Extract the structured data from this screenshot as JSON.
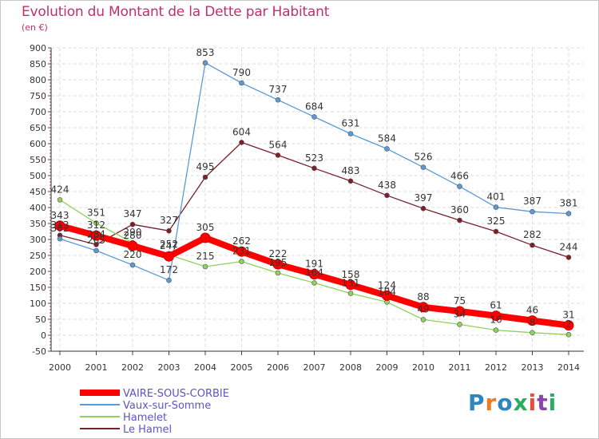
{
  "title": "Evolution du Montant de la Dette par Habitant",
  "unit_label": "(en €)",
  "logo_text": "Proxiti",
  "logo_colors": [
    "#2e86c1",
    "#e67e22",
    "#2e86c1",
    "#27ae60",
    "#e74c3c",
    "#8e44ad",
    "#27ae60"
  ],
  "chart_data": {
    "type": "line",
    "title": "Evolution du Montant de la Dette par Habitant",
    "ylabel": "(en €)",
    "x": [
      "2000",
      "2001",
      "2002",
      "2003",
      "2004",
      "2005",
      "2006",
      "2007",
      "2008",
      "2009",
      "2010",
      "2011",
      "2012",
      "2013",
      "2014"
    ],
    "yticks": [
      900,
      850,
      800,
      750,
      700,
      650,
      600,
      550,
      500,
      450,
      400,
      350,
      300,
      250,
      200,
      150,
      100,
      50,
      0,
      -50
    ],
    "ylim": [
      -50,
      900
    ],
    "grid": true,
    "legend_position": "bottom-left",
    "series": [
      {
        "name": "Le Hamel",
        "color": "#7a1f2b",
        "values": [
          313,
          284,
          347,
          327,
          495,
          604,
          564,
          523,
          483,
          438,
          397,
          360,
          325,
          282,
          244
        ],
        "labels": [
          "313",
          "284",
          "347",
          "327",
          "495",
          "604",
          "564",
          "523",
          "483",
          "438",
          "397",
          "360",
          "325",
          "282",
          "244"
        ]
      },
      {
        "name": "Hamelet",
        "color": "#8ed25c",
        "values": [
          424,
          351,
          290,
          252,
          215,
          231,
          195,
          164,
          131,
          104,
          49,
          34,
          16,
          8,
          2
        ],
        "labels": [
          "424",
          "351",
          "290",
          "252",
          "215",
          "231",
          "195",
          "164",
          "131",
          "104",
          "49",
          "34",
          "16",
          "8",
          "2"
        ]
      },
      {
        "name": "Vaux-sur-Somme",
        "color": "#5b9bd5",
        "values": [
          302,
          265,
          220,
          172,
          853,
          790,
          737,
          684,
          631,
          584,
          526,
          466,
          401,
          387,
          381
        ],
        "labels": [
          "302",
          "265",
          "220",
          "172",
          "853",
          "790",
          "737",
          "684",
          "631",
          "584",
          "526",
          "466",
          "401",
          "387",
          "381"
        ]
      },
      {
        "name": "VAIRE-SOUS-CORBIE",
        "color": "#ff0000",
        "values": [
          343,
          312,
          280,
          247,
          305,
          262,
          222,
          191,
          158,
          124,
          88,
          75,
          61,
          46,
          31
        ],
        "labels": [
          "343",
          "312",
          "280",
          "247",
          "305",
          "262",
          "222",
          "191",
          "158",
          "124",
          "88",
          "75",
          "61",
          "46",
          "31"
        ]
      }
    ]
  }
}
